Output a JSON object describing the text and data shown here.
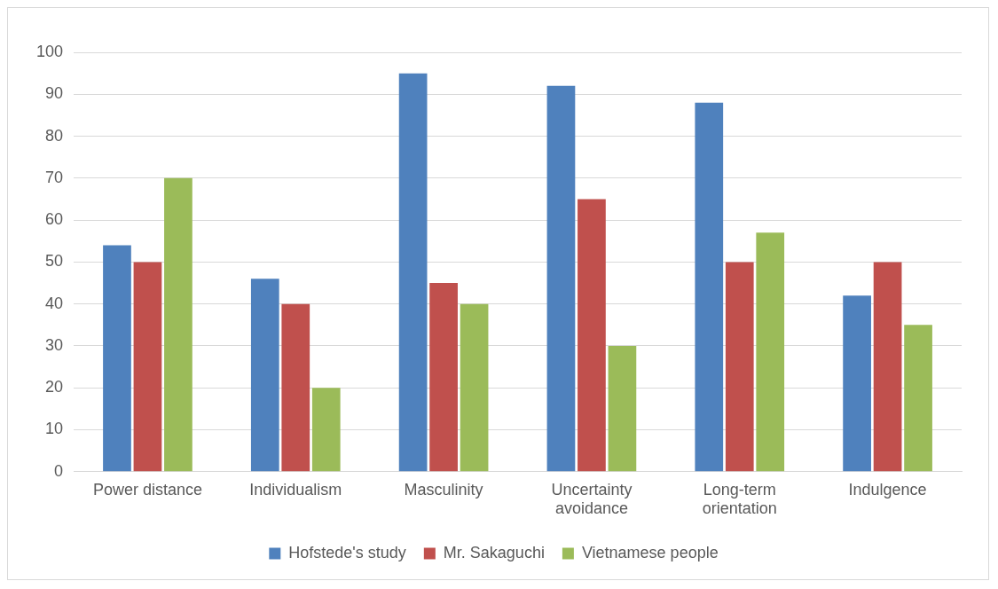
{
  "chart_data": {
    "type": "bar",
    "categories": [
      "Power distance",
      "Individualism",
      "Masculinity",
      "Uncertainty avoidance",
      "Long-term orientation",
      "Indulgence"
    ],
    "series": [
      {
        "name": "Hofstede's study",
        "color": "#4f81bd",
        "values": [
          54,
          46,
          95,
          92,
          88,
          42
        ]
      },
      {
        "name": "Mr. Sakaguchi",
        "color": "#c0504d",
        "values": [
          50,
          40,
          45,
          65,
          50,
          50
        ]
      },
      {
        "name": "Vietnamese people",
        "color": "#9bbb59",
        "values": [
          70,
          20,
          40,
          30,
          57,
          35
        ]
      }
    ],
    "ylim": [
      0,
      100
    ],
    "yticks": [
      0,
      10,
      20,
      30,
      40,
      50,
      60,
      70,
      80,
      90,
      100
    ],
    "grid": "y",
    "legend": "bottom"
  }
}
